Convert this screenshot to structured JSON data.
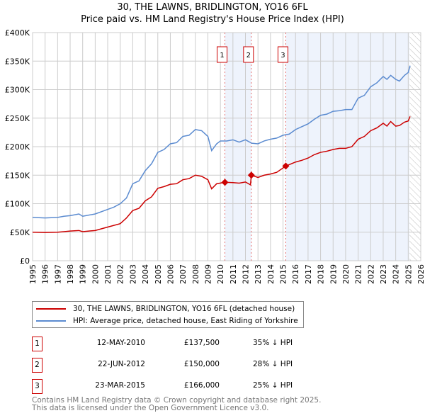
{
  "title": "30, THE LAWNS, BRIDLINGTON, YO16 6FL",
  "subtitle": "Price paid vs. HM Land Registry's House Price Index (HPI)",
  "chart_data": {
    "type": "line",
    "title": "30, THE LAWNS, BRIDLINGTON, YO16 6FL — Price paid vs. HM Land Registry's House Price Index (HPI)",
    "xlim": [
      1995,
      2026
    ],
    "ylim": [
      0,
      400000
    ],
    "x_ticks": [
      "1995",
      "1996",
      "1997",
      "1998",
      "1999",
      "2000",
      "2001",
      "2002",
      "2003",
      "2004",
      "2005",
      "2006",
      "2007",
      "2008",
      "2009",
      "2010",
      "2011",
      "2012",
      "2013",
      "2014",
      "2015",
      "2016",
      "2017",
      "2018",
      "2019",
      "2020",
      "2021",
      "2022",
      "2023",
      "2024",
      "2025",
      "2026"
    ],
    "y_ticks": [
      {
        "v": 0,
        "label": "£0"
      },
      {
        "v": 50000,
        "label": "£50K"
      },
      {
        "v": 100000,
        "label": "£100K"
      },
      {
        "v": 150000,
        "label": "£150K"
      },
      {
        "v": 200000,
        "label": "£200K"
      },
      {
        "v": 250000,
        "label": "£250K"
      },
      {
        "v": 300000,
        "label": "£300K"
      },
      {
        "v": 350000,
        "label": "£350K"
      },
      {
        "v": 400000,
        "label": "£400K"
      }
    ],
    "grid": true,
    "series": [
      {
        "name": "30, THE LAWNS, BRIDLINGTON, YO16 6FL (detached house)",
        "color": "#cc0000",
        "points": [
          [
            1995,
            50
          ],
          [
            1996,
            49.5
          ],
          [
            1997,
            50
          ],
          [
            1997.5,
            51
          ],
          [
            1998,
            52
          ],
          [
            1998.7,
            53
          ],
          [
            1999,
            51
          ],
          [
            2000,
            53
          ],
          [
            2001,
            59
          ],
          [
            2002,
            65
          ],
          [
            2002.5,
            75
          ],
          [
            2003,
            88
          ],
          [
            2003.5,
            92
          ],
          [
            2004,
            105
          ],
          [
            2004.5,
            112
          ],
          [
            2005,
            127
          ],
          [
            2005.5,
            130
          ],
          [
            2006,
            134
          ],
          [
            2006.5,
            135
          ],
          [
            2007,
            142
          ],
          [
            2007.5,
            144
          ],
          [
            2008,
            150
          ],
          [
            2008.5,
            148
          ],
          [
            2009,
            142
          ],
          [
            2009.3,
            126
          ],
          [
            2009.7,
            135
          ],
          [
            2010.36,
            137.5
          ],
          [
            2011,
            137
          ],
          [
            2011.5,
            136
          ],
          [
            2012,
            138
          ],
          [
            2012.4,
            133
          ],
          [
            2012.47,
            150
          ],
          [
            2013,
            146
          ],
          [
            2013.5,
            150
          ],
          [
            2014,
            152
          ],
          [
            2014.5,
            155
          ],
          [
            2015.22,
            166
          ],
          [
            2016,
            173
          ],
          [
            2016.5,
            176
          ],
          [
            2017,
            180
          ],
          [
            2017.5,
            186
          ],
          [
            2018,
            190
          ],
          [
            2018.5,
            192
          ],
          [
            2019,
            195
          ],
          [
            2019.5,
            197
          ],
          [
            2020,
            197
          ],
          [
            2020.5,
            200
          ],
          [
            2021,
            213
          ],
          [
            2021.5,
            218
          ],
          [
            2022,
            228
          ],
          [
            2022.5,
            233
          ],
          [
            2023,
            241
          ],
          [
            2023.3,
            236
          ],
          [
            2023.6,
            244
          ],
          [
            2024,
            236
          ],
          [
            2024.3,
            237
          ],
          [
            2024.7,
            243
          ],
          [
            2025,
            245
          ],
          [
            2025.15,
            253
          ]
        ]
      },
      {
        "name": "HPI: Average price, detached house, East Riding of Yorkshire",
        "color": "#5b8bd0",
        "points": [
          [
            1995,
            76
          ],
          [
            1996,
            75
          ],
          [
            1997,
            76
          ],
          [
            1997.5,
            78
          ],
          [
            1998,
            79
          ],
          [
            1998.7,
            82
          ],
          [
            1999,
            78
          ],
          [
            2000,
            82
          ],
          [
            2001,
            90
          ],
          [
            2001.5,
            94
          ],
          [
            2002,
            100
          ],
          [
            2002.5,
            110
          ],
          [
            2003,
            135
          ],
          [
            2003.5,
            140
          ],
          [
            2004,
            158
          ],
          [
            2004.5,
            170
          ],
          [
            2005,
            190
          ],
          [
            2005.5,
            195
          ],
          [
            2006,
            205
          ],
          [
            2006.5,
            207
          ],
          [
            2007,
            218
          ],
          [
            2007.5,
            220
          ],
          [
            2008,
            230
          ],
          [
            2008.5,
            228
          ],
          [
            2009,
            218
          ],
          [
            2009.3,
            193
          ],
          [
            2009.7,
            205
          ],
          [
            2010,
            210
          ],
          [
            2010.5,
            210
          ],
          [
            2011,
            212
          ],
          [
            2011.5,
            208
          ],
          [
            2012,
            212
          ],
          [
            2012.5,
            206
          ],
          [
            2013,
            205
          ],
          [
            2013.5,
            210
          ],
          [
            2014,
            213
          ],
          [
            2014.5,
            215
          ],
          [
            2015,
            220
          ],
          [
            2015.5,
            222
          ],
          [
            2016,
            230
          ],
          [
            2016.5,
            235
          ],
          [
            2017,
            240
          ],
          [
            2017.5,
            248
          ],
          [
            2018,
            255
          ],
          [
            2018.5,
            257
          ],
          [
            2019,
            262
          ],
          [
            2019.5,
            263
          ],
          [
            2020,
            265
          ],
          [
            2020.5,
            265
          ],
          [
            2021,
            285
          ],
          [
            2021.5,
            290
          ],
          [
            2022,
            305
          ],
          [
            2022.5,
            312
          ],
          [
            2023,
            323
          ],
          [
            2023.3,
            318
          ],
          [
            2023.6,
            325
          ],
          [
            2024,
            318
          ],
          [
            2024.3,
            315
          ],
          [
            2024.7,
            325
          ],
          [
            2025,
            330
          ],
          [
            2025.15,
            342
          ]
        ]
      }
    ],
    "values_unit": "£ thousands",
    "sales": [
      {
        "n": "1",
        "x": 2010.36,
        "y": 137.5
      },
      {
        "n": "2",
        "x": 2012.47,
        "y": 150
      },
      {
        "n": "3",
        "x": 2015.22,
        "y": 166
      }
    ],
    "shaded_ranges": [
      [
        2010.36,
        2012.47
      ],
      [
        2015.22,
        2025.1
      ]
    ],
    "hatched_from": 2025.1,
    "legend_position": "below"
  },
  "legend": [
    {
      "label": "30, THE LAWNS, BRIDLINGTON, YO16 6FL (detached house)",
      "color": "#cc0000"
    },
    {
      "label": "HPI: Average price, detached house, East Riding of Yorkshire",
      "color": "#5b8bd0"
    }
  ],
  "sales_table": [
    {
      "n": "1",
      "date": "12-MAY-2010",
      "price": "£137,500",
      "hpi": "35% ↓ HPI"
    },
    {
      "n": "2",
      "date": "22-JUN-2012",
      "price": "£150,000",
      "hpi": "28% ↓ HPI"
    },
    {
      "n": "3",
      "date": "23-MAR-2015",
      "price": "£166,000",
      "hpi": "25% ↓ HPI"
    }
  ],
  "footer": [
    "Contains HM Land Registry data © Crown copyright and database right 2025.",
    "This data is licensed under the Open Government Licence v3.0."
  ]
}
